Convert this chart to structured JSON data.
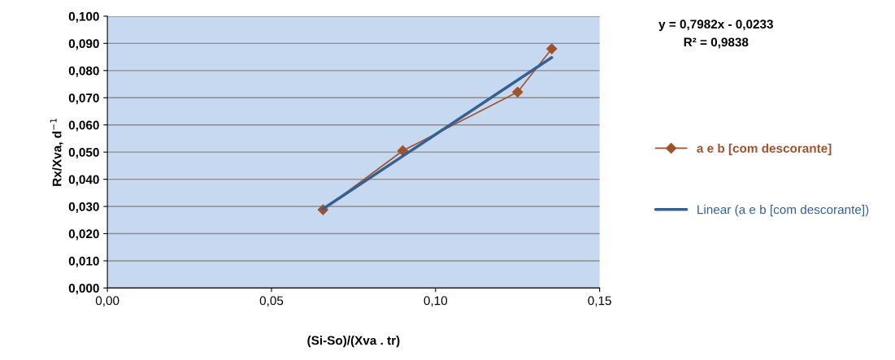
{
  "chart_data": {
    "type": "line",
    "xlabel": "(Si-So)/(Xva . tr)",
    "ylabel": "Rx/Xva, d$^{−1}$",
    "annotations": [
      "y = 0,7982x - 0,0233",
      "R² = 0,9838"
    ],
    "series": [
      {
        "name": "a e b [com descorante]",
        "color": "#a0522d",
        "x": [
          0.0657,
          0.09,
          0.125,
          0.1354
        ],
        "values": [
          0.0288,
          0.0505,
          0.0721,
          0.088
        ],
        "marker": "diamond"
      },
      {
        "name": "Linear (a e b [com descorante])",
        "color": "#376092",
        "type": "line",
        "x": [
          0.0657,
          0.1354
        ],
        "values": [
          0.0291,
          0.0848
        ],
        "marker": "none"
      }
    ],
    "xlim": [
      0,
      0.15
    ],
    "xticks": [
      {
        "value": 0,
        "label": "0,00"
      },
      {
        "value": 0.05,
        "label": "0,05"
      },
      {
        "value": 0.1,
        "label": "0,10"
      },
      {
        "value": 0.15,
        "label": "0,15"
      }
    ],
    "ylim": [
      0,
      0.1
    ],
    "yticks": [
      {
        "value": 0,
        "label": "0,000"
      },
      {
        "value": 0.01,
        "label": "0,010"
      },
      {
        "value": 0.02,
        "label": "0,020"
      },
      {
        "value": 0.03,
        "label": "0,030"
      },
      {
        "value": 0.04,
        "label": "0,040"
      },
      {
        "value": 0.05,
        "label": "0,050"
      },
      {
        "value": 0.06,
        "label": "0,060"
      },
      {
        "value": 0.07,
        "label": "0,070"
      },
      {
        "value": 0.08,
        "label": "0,080"
      },
      {
        "value": 0.09,
        "label": "0,090"
      },
      {
        "value": 0.1,
        "label": "0,100"
      }
    ],
    "grid": "y",
    "legend": "right",
    "line_style": "solid"
  }
}
